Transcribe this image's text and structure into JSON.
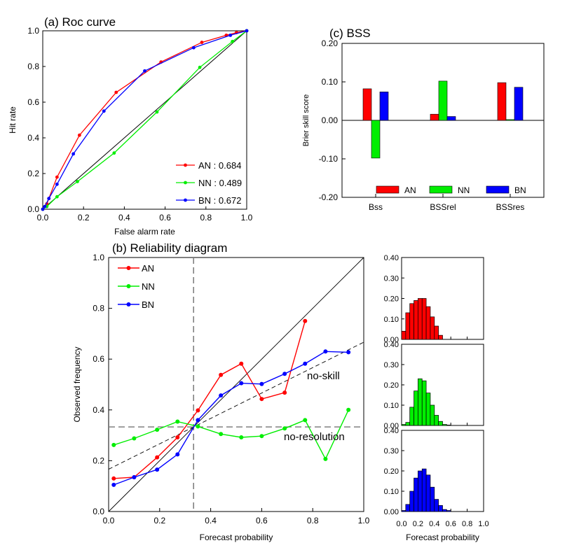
{
  "colors": {
    "AN": "#ff0000",
    "NN": "#00ee00",
    "BN": "#0000ff"
  },
  "chart_data": [
    {
      "id": "roc",
      "type": "line",
      "title": "(a) Roc curve",
      "xlabel": "False alarm rate",
      "ylabel": "Hit rate",
      "xlim": [
        0,
        1
      ],
      "ylim": [
        0,
        1
      ],
      "xticks": [
        "0.0",
        "0.2",
        "0.4",
        "0.6",
        "0.8",
        "1.0"
      ],
      "yticks": [
        "0.0",
        "0.2",
        "0.4",
        "0.6",
        "0.8",
        "1.0"
      ],
      "diagonal": true,
      "legend_position": "bottom-right",
      "legend": [
        "AN : 0.684",
        "NN : 0.489",
        "BN : 0.672"
      ],
      "series": [
        {
          "name": "AN",
          "color_key": "AN",
          "points": [
            [
              0,
              0
            ],
            [
              0.02,
              0.03
            ],
            [
              0.03,
              0.06
            ],
            [
              0.07,
              0.18
            ],
            [
              0.18,
              0.415
            ],
            [
              0.36,
              0.655
            ],
            [
              0.58,
              0.825
            ],
            [
              0.78,
              0.935
            ],
            [
              0.9,
              0.975
            ],
            [
              0.95,
              0.99
            ],
            [
              1,
              1
            ]
          ]
        },
        {
          "name": "NN",
          "color_key": "NN",
          "points": [
            [
              0,
              0
            ],
            [
              0.02,
              0.015
            ],
            [
              0.07,
              0.07
            ],
            [
              0.17,
              0.155
            ],
            [
              0.35,
              0.315
            ],
            [
              0.56,
              0.545
            ],
            [
              0.77,
              0.795
            ],
            [
              0.93,
              0.94
            ],
            [
              1,
              1
            ]
          ]
        },
        {
          "name": "BN",
          "color_key": "BN",
          "points": [
            [
              0,
              0
            ],
            [
              0.01,
              0.015
            ],
            [
              0.03,
              0.06
            ],
            [
              0.07,
              0.14
            ],
            [
              0.15,
              0.31
            ],
            [
              0.3,
              0.55
            ],
            [
              0.5,
              0.775
            ],
            [
              0.74,
              0.905
            ],
            [
              0.92,
              0.975
            ],
            [
              1,
              1
            ]
          ]
        }
      ]
    },
    {
      "id": "bss",
      "type": "bar",
      "title": "(c) BSS",
      "ylabel": "Brier skill score",
      "categories": [
        "Bss",
        "BSSrel",
        "BSSres"
      ],
      "ylim": [
        -0.2,
        0.2
      ],
      "yticks": [
        "0.20",
        "0.10",
        "0.00",
        "-0.10",
        "-0.20"
      ],
      "legend_position": "bottom-center",
      "series": [
        {
          "name": "AN",
          "color_key": "AN",
          "values": [
            0.082,
            0.016,
            0.098
          ]
        },
        {
          "name": "NN",
          "color_key": "NN",
          "values": [
            -0.098,
            0.102,
            0.002
          ]
        },
        {
          "name": "BN",
          "color_key": "BN",
          "values": [
            0.074,
            0.01,
            0.086
          ]
        }
      ]
    },
    {
      "id": "reliability",
      "type": "line",
      "title": "(b) Reliability diagram",
      "xlabel": "Forecast probability",
      "ylabel": "Observed frequency",
      "xlim": [
        0,
        1
      ],
      "ylim": [
        0,
        1
      ],
      "xticks": [
        "0.0",
        "0.2",
        "0.4",
        "0.6",
        "0.8",
        "1.0"
      ],
      "yticks": [
        "0.0",
        "0.2",
        "0.4",
        "0.6",
        "0.8",
        "1.0"
      ],
      "climatology": 0.333,
      "no_skill_label": "no-skill",
      "no_resolution_label": "no-resolution",
      "legend_position": "top-left",
      "series": [
        {
          "name": "AN",
          "color_key": "AN",
          "points": [
            [
              0.02,
              0.13
            ],
            [
              0.1,
              0.135
            ],
            [
              0.19,
              0.213
            ],
            [
              0.27,
              0.292
            ],
            [
              0.35,
              0.398
            ],
            [
              0.44,
              0.538
            ],
            [
              0.52,
              0.582
            ],
            [
              0.6,
              0.443
            ],
            [
              0.69,
              0.468
            ],
            [
              0.77,
              0.75
            ]
          ]
        },
        {
          "name": "NN",
          "color_key": "NN",
          "points": [
            [
              0.02,
              0.262
            ],
            [
              0.1,
              0.288
            ],
            [
              0.19,
              0.322
            ],
            [
              0.27,
              0.354
            ],
            [
              0.35,
              0.335
            ],
            [
              0.44,
              0.305
            ],
            [
              0.52,
              0.292
            ],
            [
              0.6,
              0.297
            ],
            [
              0.69,
              0.327
            ],
            [
              0.77,
              0.36
            ],
            [
              0.85,
              0.207
            ],
            [
              0.94,
              0.4
            ]
          ]
        },
        {
          "name": "BN",
          "color_key": "BN",
          "points": [
            [
              0.02,
              0.105
            ],
            [
              0.1,
              0.135
            ],
            [
              0.19,
              0.165
            ],
            [
              0.27,
              0.225
            ],
            [
              0.35,
              0.36
            ],
            [
              0.44,
              0.457
            ],
            [
              0.52,
              0.505
            ],
            [
              0.6,
              0.502
            ],
            [
              0.69,
              0.542
            ],
            [
              0.77,
              0.582
            ],
            [
              0.85,
              0.63
            ],
            [
              0.94,
              0.627
            ]
          ]
        }
      ]
    },
    {
      "id": "histograms",
      "type": "bar",
      "xlabel": "Forecast probability",
      "xlim": [
        0,
        1
      ],
      "ylim": [
        0,
        0.4
      ],
      "xticks": [
        "0.0",
        "0.2",
        "0.4",
        "0.6",
        "0.8",
        "1.0"
      ],
      "yticks": [
        "0.00",
        "0.10",
        "0.20",
        "0.30",
        "0.40"
      ],
      "bin_width": 0.05,
      "bin_starts": [
        0,
        0.05,
        0.1,
        0.15,
        0.2,
        0.25,
        0.3,
        0.35,
        0.4,
        0.45,
        0.5,
        0.55,
        0.6,
        0.65,
        0.7,
        0.75,
        0.8,
        0.85,
        0.9,
        0.95
      ],
      "series": [
        {
          "name": "AN",
          "color_key": "AN",
          "values": [
            0.04,
            0.13,
            0.175,
            0.19,
            0.2,
            0.2,
            0.16,
            0.11,
            0.065,
            0.02,
            0,
            0,
            0,
            0,
            0,
            0,
            0,
            0,
            0,
            0
          ]
        },
        {
          "name": "NN",
          "color_key": "NN",
          "values": [
            0.005,
            0.015,
            0.09,
            0.17,
            0.23,
            0.22,
            0.16,
            0.1,
            0.05,
            0.02,
            0.005,
            0.002,
            0,
            0,
            0,
            0,
            0,
            0,
            0,
            0
          ]
        },
        {
          "name": "BN",
          "color_key": "BN",
          "values": [
            0.005,
            0.035,
            0.1,
            0.165,
            0.2,
            0.21,
            0.18,
            0.12,
            0.06,
            0.03,
            0.01,
            0.005,
            0,
            0,
            0,
            0,
            0,
            0,
            0,
            0
          ]
        }
      ]
    }
  ]
}
